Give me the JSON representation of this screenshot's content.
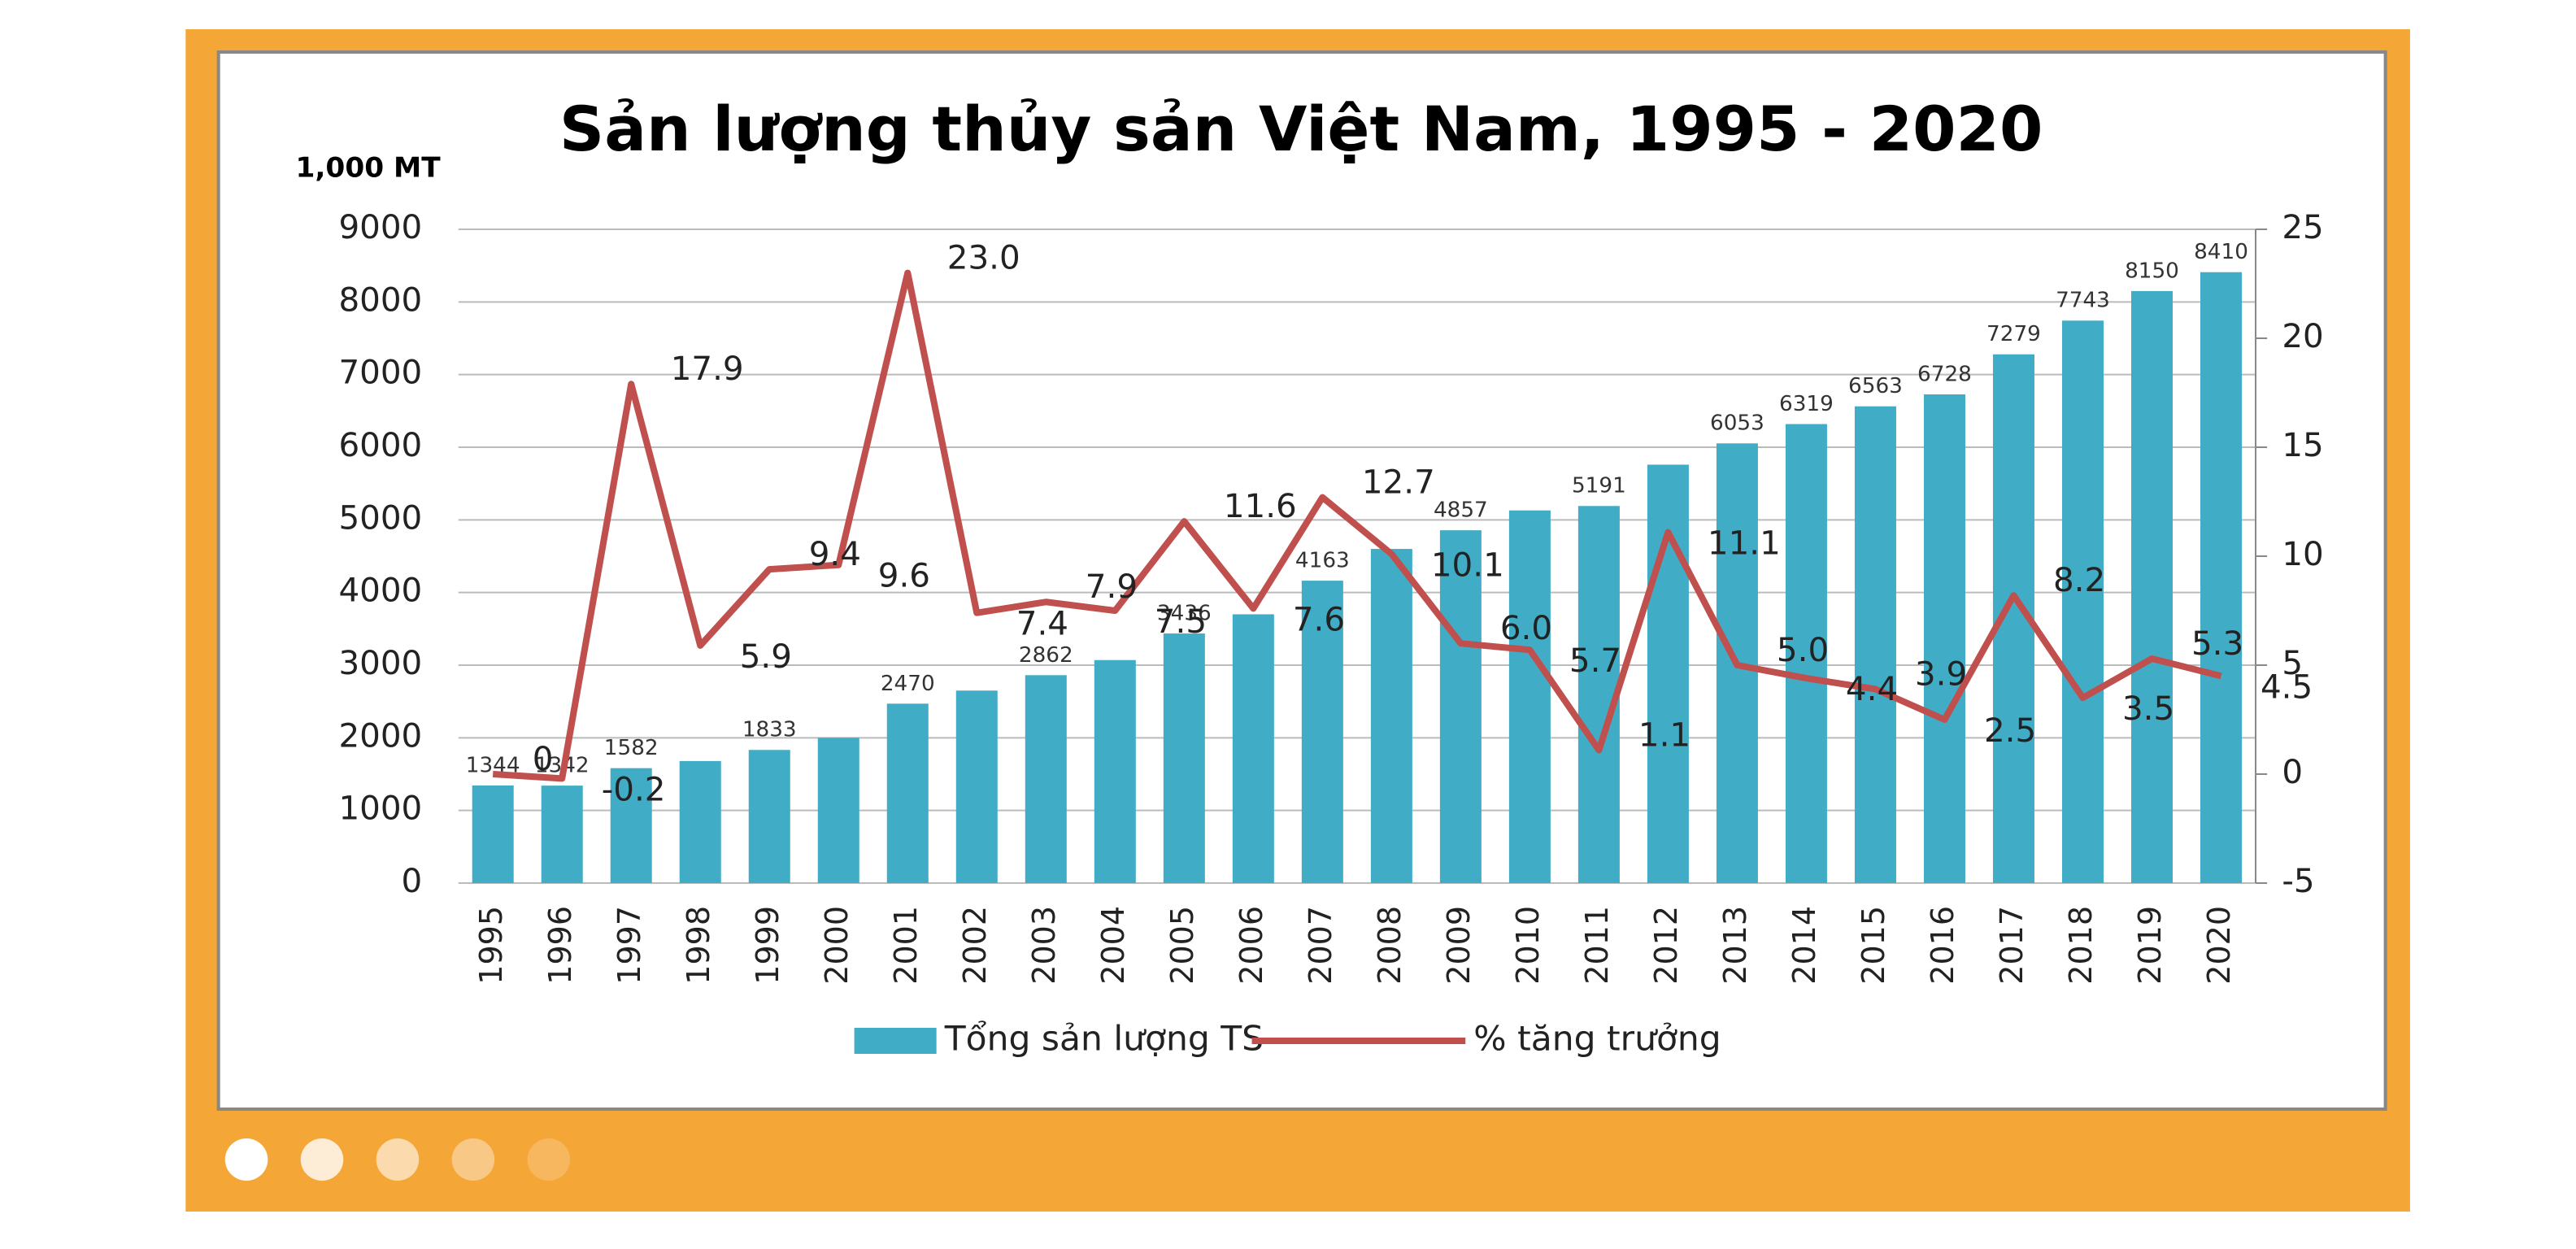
{
  "chart_data": {
    "type": "bar_line",
    "title": "Sản lượng thủy sản Việt Nam, 1995 - 2020",
    "y_label": "1,000 MT",
    "categories": [
      "1995",
      "1996",
      "1997",
      "1998",
      "1999",
      "2000",
      "2001",
      "2002",
      "2003",
      "2004",
      "2005",
      "2006",
      "2007",
      "2008",
      "2009",
      "2010",
      "2011",
      "2012",
      "2013",
      "2014",
      "2015",
      "2016",
      "2017",
      "2018",
      "2019",
      "2020"
    ],
    "series": [
      {
        "name": "Tổng sản lượng TS",
        "type": "bar",
        "color": "#41acc6",
        "values": [
          1344,
          1342,
          1582,
          1680,
          1833,
          2000,
          2470,
          2650,
          2862,
          3070,
          3436,
          3700,
          4163,
          4600,
          4857,
          5130,
          5191,
          5760,
          6053,
          6319,
          6563,
          6728,
          7279,
          7743,
          8150,
          8410
        ],
        "value_labels": [
          "1344",
          "1342",
          "1582",
          null,
          "1833",
          null,
          "2470",
          null,
          "2862",
          null,
          "3436",
          null,
          "4163",
          null,
          "4857",
          null,
          "5191",
          null,
          "6053",
          "6319",
          "6563",
          "6728",
          "7279",
          "7743",
          "8150",
          "8410"
        ]
      },
      {
        "name": "% tăng trưởng",
        "type": "line",
        "axis": "y2",
        "color": "#c0504d",
        "values": [
          0,
          -0.2,
          17.9,
          5.9,
          9.4,
          9.6,
          23.0,
          7.4,
          7.9,
          7.5,
          11.6,
          7.6,
          12.7,
          10.1,
          6.0,
          5.7,
          1.1,
          11.1,
          5.0,
          4.4,
          3.9,
          2.5,
          8.2,
          3.5,
          5.3,
          4.5
        ],
        "value_labels": [
          "0",
          "-0.2",
          "17.9",
          "5.9",
          "9.4",
          "9.6",
          "23.0",
          "7.4",
          "7.9",
          "7.5",
          "11.6",
          "7.6",
          "12.7",
          "10.1",
          "6.0",
          "5.7",
          "1.1",
          "11.1",
          "5.0",
          "4.4",
          "3.9",
          "2.5",
          "8.2",
          "3.5",
          "5.3",
          "4.5"
        ]
      }
    ],
    "ylim": [
      0,
      9000
    ],
    "yticks": [
      0,
      1000,
      2000,
      3000,
      4000,
      5000,
      6000,
      7000,
      8000,
      9000
    ],
    "y2lim": [
      -5,
      25
    ],
    "y2ticks": [
      -5,
      0,
      5,
      10,
      15,
      20,
      25
    ],
    "grid": true,
    "legend": "bottom"
  }
}
